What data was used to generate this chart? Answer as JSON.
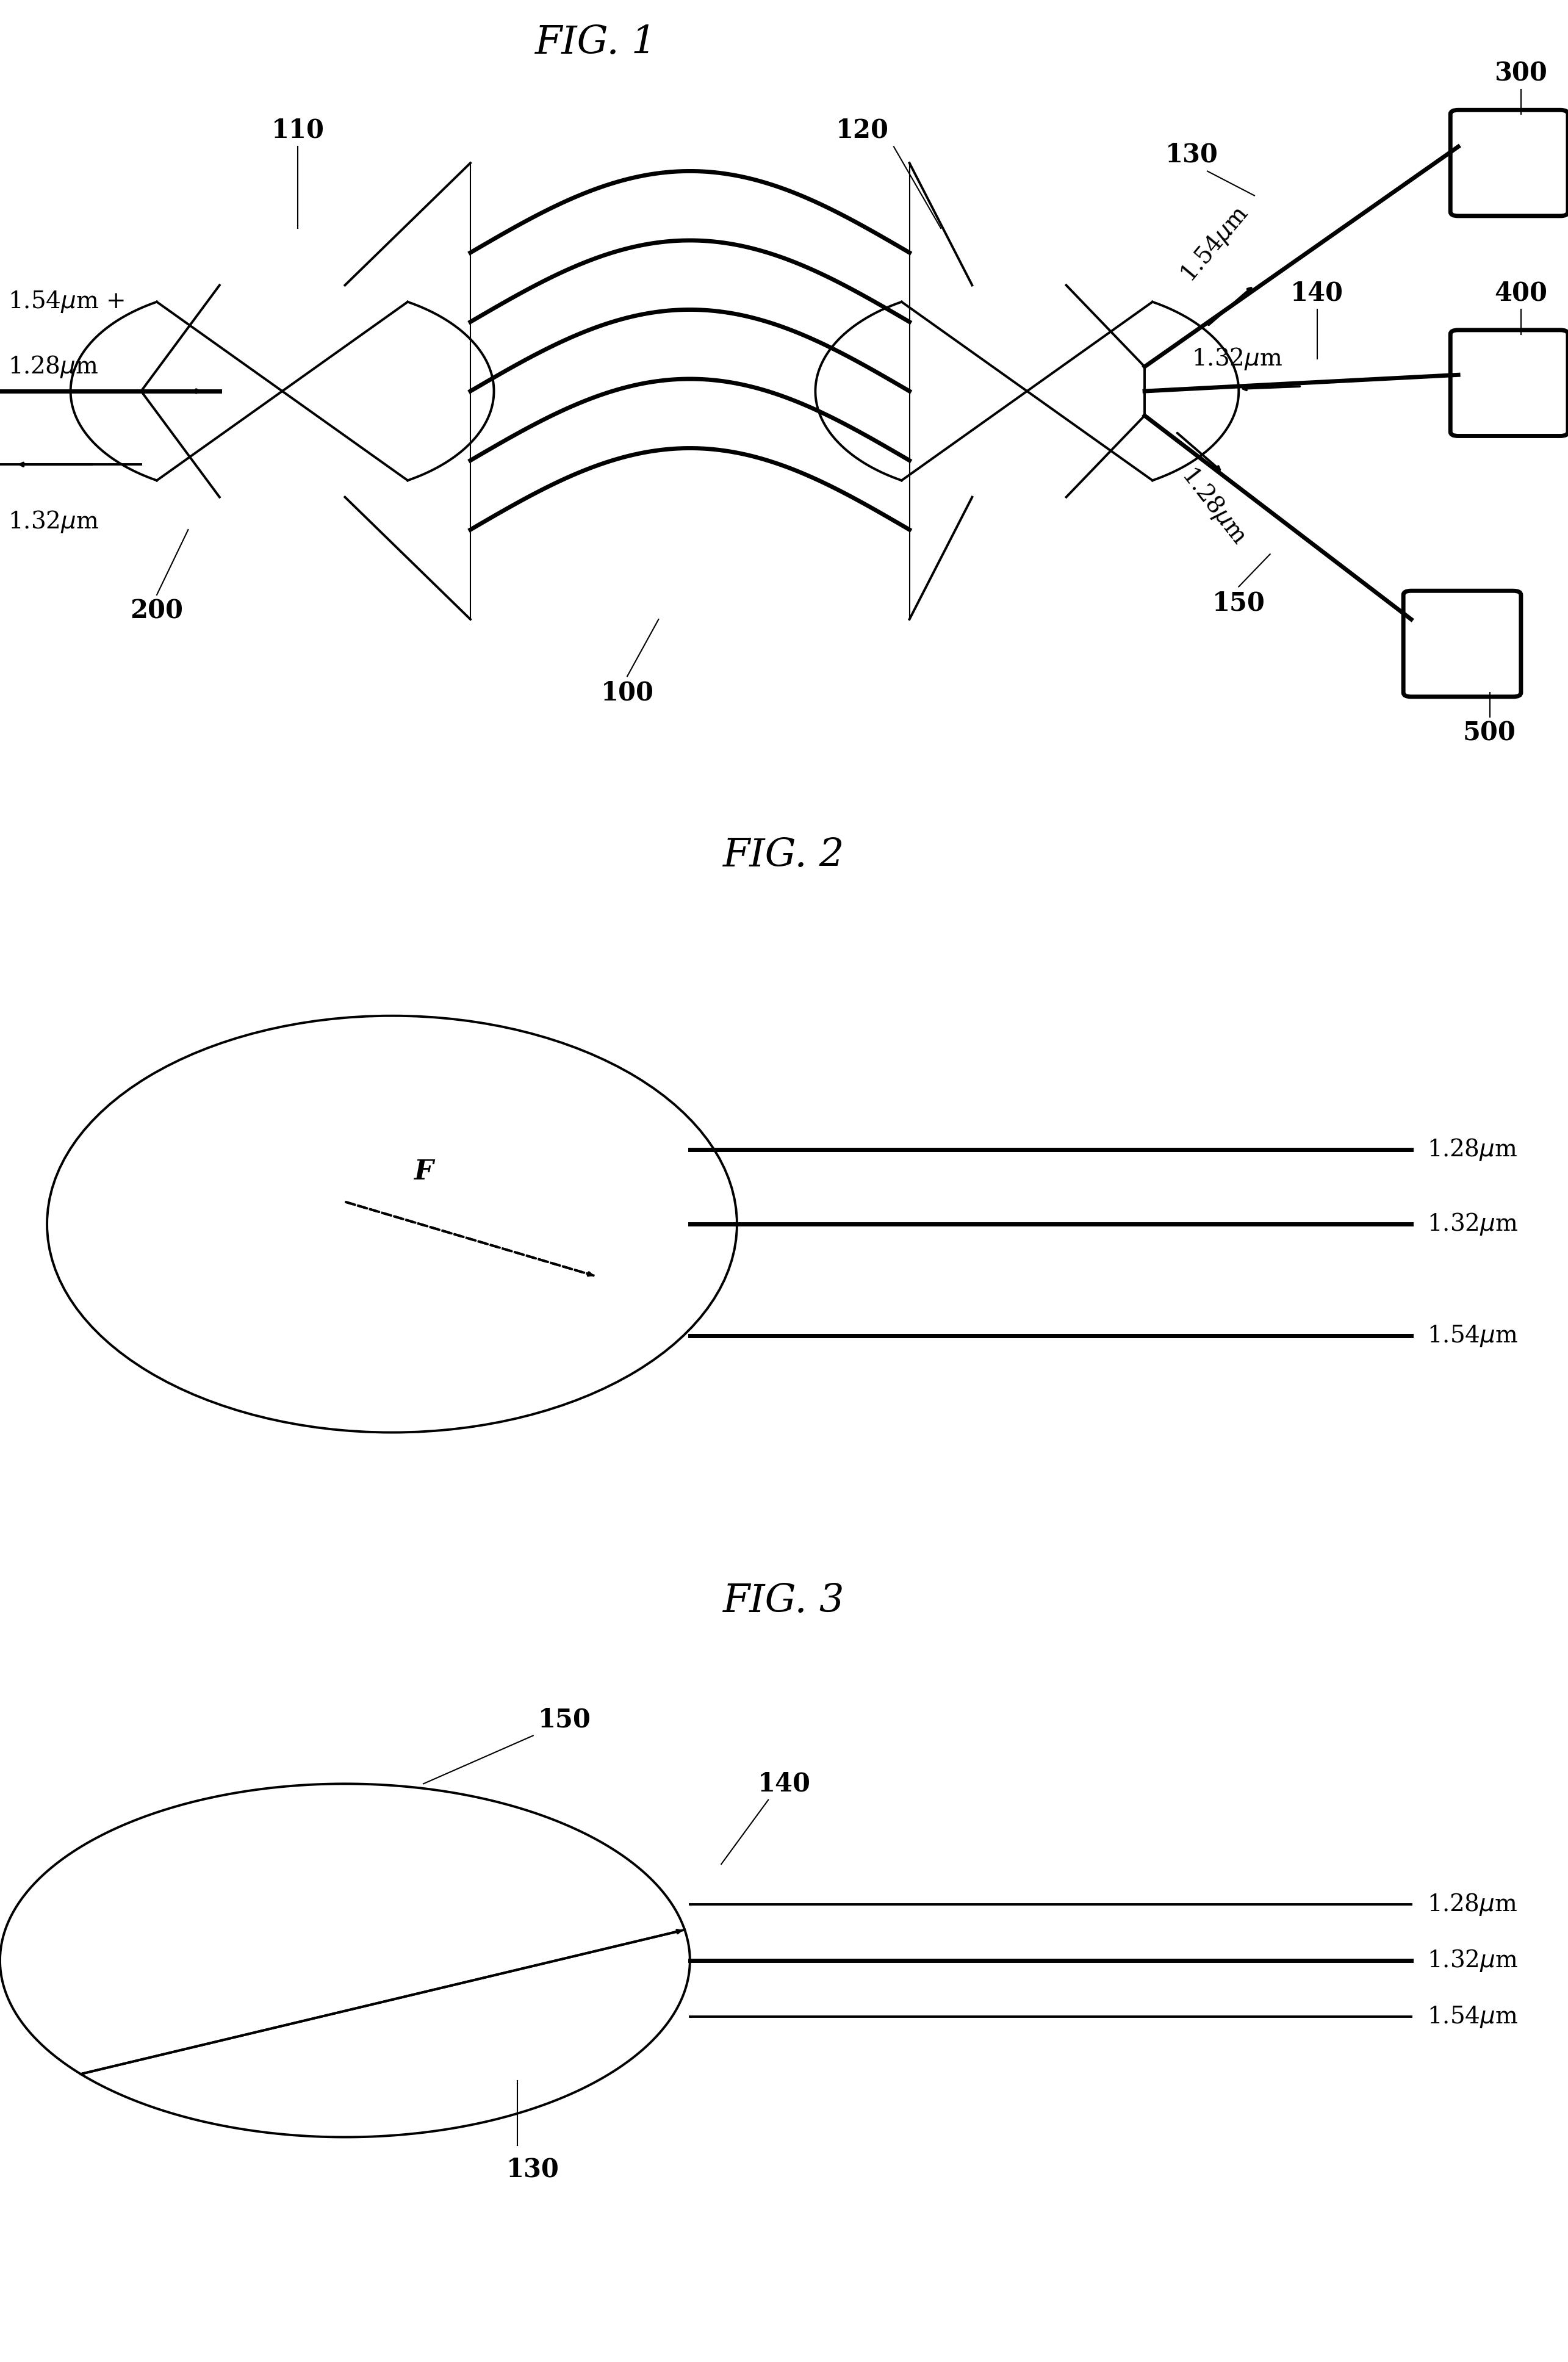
{
  "fig_width": 25.7,
  "fig_height": 38.71,
  "bg_color": "#ffffff",
  "fig1_title": "FIG. 1",
  "fig2_title": "FIG. 2",
  "fig3_title": "FIG. 3",
  "lw_thin": 1.5,
  "lw_med": 2.8,
  "lw_thick": 5.0,
  "fontsize_label": 28,
  "fontsize_num": 30,
  "fontsize_title": 46
}
